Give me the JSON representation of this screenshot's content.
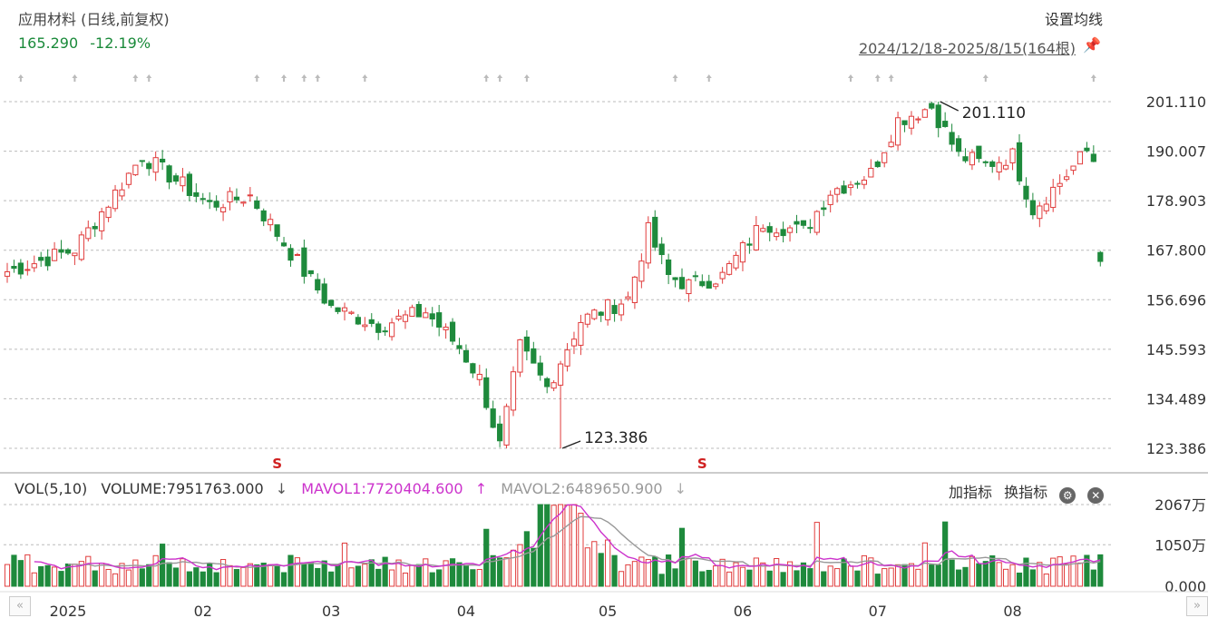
{
  "header": {
    "title": "应用材料 (日线,前复权)",
    "price": "165.290",
    "change_pct": "-12.19%",
    "ma_setting_label": "设置均线",
    "ma_setting_chevron": "›",
    "range_info": "2024/12/18-2025/8/15(164根)"
  },
  "volume_panel": {
    "label": "VOL(5,10)",
    "volume": "VOLUME:7951763.000",
    "volume_arrow": "↓",
    "mavol1": "MAVOL1:7720404.600",
    "mavol1_arrow": "↑",
    "mavol2": "MAVOL2:6489650.900",
    "mavol2_arrow": "↓",
    "add_indicator": "加指标",
    "switch_indicator": "换指标"
  },
  "nav": {
    "left": "«",
    "right": "»"
  },
  "colors": {
    "up": "#e03c3c",
    "down": "#1e8a3c",
    "mavol1": "#cc33cc",
    "mavol2": "#999999",
    "grid": "#bbbbbb"
  },
  "chart_data": {
    "type": "candlestick",
    "title": "应用材料 (日线,前复权)",
    "y_ticks": [
      "201.110",
      "190.007",
      "178.903",
      "167.800",
      "156.696",
      "145.593",
      "134.489",
      "123.386"
    ],
    "ylim": [
      123.386,
      201.11
    ],
    "x_ticks": [
      "2025",
      "02",
      "03",
      "04",
      "05",
      "06",
      "07",
      "08"
    ],
    "x_tick_index": [
      9,
      29,
      48,
      68,
      89,
      109,
      129,
      149
    ],
    "annotations": [
      {
        "text": "201.110",
        "index": 138,
        "value": 201.11,
        "kind": "high"
      },
      {
        "text": "123.386",
        "index": 82,
        "value": 123.386,
        "kind": "low"
      }
    ],
    "event_markers": [
      {
        "text": "S",
        "index": 40
      },
      {
        "text": "S",
        "index": 103
      }
    ],
    "volume_ticks": [
      "2067万",
      "1050万",
      "0.000"
    ],
    "volume_ylim": [
      0,
      2067
    ],
    "volume_unit": "万",
    "ohlc_anchor": [
      {
        "index": 0,
        "close": 163
      },
      {
        "index": 10,
        "close": 168
      },
      {
        "index": 20,
        "close": 189
      },
      {
        "index": 30,
        "close": 178
      },
      {
        "index": 36,
        "close": 180
      },
      {
        "index": 44,
        "close": 163
      },
      {
        "index": 48,
        "close": 155
      },
      {
        "index": 55,
        "close": 151
      },
      {
        "index": 62,
        "close": 154
      },
      {
        "index": 67,
        "close": 146
      },
      {
        "index": 70,
        "close": 139
      },
      {
        "index": 73,
        "close": 124
      },
      {
        "index": 76,
        "close": 146
      },
      {
        "index": 80,
        "close": 137
      },
      {
        "index": 85,
        "close": 152
      },
      {
        "index": 92,
        "close": 157
      },
      {
        "index": 95,
        "close": 172
      },
      {
        "index": 98,
        "close": 162
      },
      {
        "index": 101,
        "close": 160
      },
      {
        "index": 106,
        "close": 162
      },
      {
        "index": 112,
        "close": 174
      },
      {
        "index": 118,
        "close": 172
      },
      {
        "index": 122,
        "close": 181
      },
      {
        "index": 128,
        "close": 185
      },
      {
        "index": 132,
        "close": 197
      },
      {
        "index": 137,
        "close": 200
      },
      {
        "index": 141,
        "close": 189
      },
      {
        "index": 145,
        "close": 187
      },
      {
        "index": 149,
        "close": 189
      },
      {
        "index": 152,
        "close": 177
      },
      {
        "index": 156,
        "close": 183
      },
      {
        "index": 160,
        "close": 190
      },
      {
        "index": 161,
        "close": 188
      },
      {
        "index": 162,
        "close": 165.29
      }
    ]
  }
}
